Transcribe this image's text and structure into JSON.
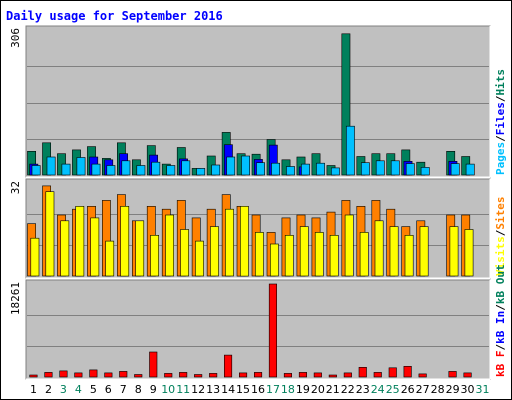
{
  "chart_data": {
    "type": "bar",
    "title": "Daily usage for September 2016",
    "days": [
      "1",
      "2",
      "3",
      "4",
      "5",
      "6",
      "7",
      "8",
      "9",
      "10",
      "11",
      "12",
      "13",
      "14",
      "15",
      "16",
      "17",
      "18",
      "19",
      "20",
      "21",
      "22",
      "23",
      "24",
      "25",
      "26",
      "27",
      "28",
      "29",
      "30",
      "31"
    ],
    "weekend_days": [
      "3",
      "4",
      "10",
      "11",
      "17",
      "18",
      "24",
      "25",
      "31"
    ],
    "panels": [
      {
        "id": "hits-files-pages",
        "max_label": "306",
        "ymax": 306,
        "right_labels": [
          {
            "text": "Pages",
            "color": "#00c0ff"
          },
          {
            "text": "/",
            "color": "#000000"
          },
          {
            "text": "Files",
            "color": "#0000ff"
          },
          {
            "text": "/",
            "color": "#000000"
          },
          {
            "text": "Hits",
            "color": "#00805c"
          }
        ],
        "series": [
          {
            "name": "Hits",
            "color": "#00805c",
            "values": [
              50,
              68,
              45,
              53,
              60,
              35,
              68,
              32,
              62,
              23,
              58,
              14,
              40,
              90,
              45,
              44,
              75,
              32,
              38,
              45,
              20,
              298,
              39,
              45,
              45,
              53,
              27,
              0,
              50,
              39,
              null
            ]
          },
          {
            "name": "Files",
            "color": "#0000ff",
            "values": [
              23,
              0,
              0,
              0,
              38,
              32,
              45,
              0,
              42,
              0,
              34,
              0,
              0,
              64,
              0,
              33,
              63,
              0,
              17,
              0,
              0,
              0,
              0,
              0,
              0,
              29,
              0,
              0,
              29,
              0,
              null
            ]
          },
          {
            "name": "Pages",
            "color": "#00c0ff",
            "values": [
              20,
              38,
              23,
              37,
              23,
              20,
              30,
              20,
              27,
              20,
              30,
              14,
              21,
              38,
              40,
              26,
              25,
              18,
              23,
              25,
              15,
              103,
              26,
              30,
              30,
              24,
              16,
              0,
              24,
              23,
              null
            ]
          }
        ]
      },
      {
        "id": "visits-sites",
        "max_label": "32",
        "ymax": 32,
        "right_labels": [
          {
            "text": "Visits",
            "color": "#ffff00"
          },
          {
            "text": "/",
            "color": "#000000"
          },
          {
            "text": "Sites",
            "color": "#ff8000"
          }
        ],
        "series": [
          {
            "name": "Sites",
            "color": "#ff8000",
            "values": [
              18,
              31,
              21,
              23,
              24,
              26,
              28,
              19,
              24,
              23,
              26,
              20,
              23,
              28,
              24,
              21,
              15,
              20,
              21,
              20,
              22,
              26,
              24,
              26,
              23,
              17,
              19,
              0,
              21,
              21,
              null
            ]
          },
          {
            "name": "Visits",
            "color": "#ffff00",
            "values": [
              13,
              29,
              19,
              24,
              20,
              12,
              24,
              19,
              14,
              21,
              16,
              12,
              17,
              23,
              24,
              15,
              11,
              14,
              17,
              15,
              14,
              21,
              15,
              19,
              17,
              14,
              17,
              0,
              17,
              16,
              null
            ]
          }
        ]
      },
      {
        "id": "kbytes",
        "max_label": "18261",
        "ymax": 18261,
        "right_labels": [
          {
            "text": "kB F",
            "color": "#ff0000"
          },
          {
            "text": "/",
            "color": "#000000"
          },
          {
            "text": "kB In",
            "color": "#0000ff"
          },
          {
            "text": "/",
            "color": "#000000"
          },
          {
            "text": "kB Out",
            "color": "#00805c"
          }
        ],
        "series": [
          {
            "name": "kB F",
            "color": "#ff0000",
            "values": [
              400,
              900,
              1200,
              800,
              1400,
              800,
              1100,
              500,
              4900,
              700,
              900,
              500,
              700,
              4300,
              800,
              900,
              18261,
              700,
              900,
              800,
              400,
              800,
              1900,
              900,
              1800,
              2100,
              600,
              0,
              1100,
              800,
              null
            ]
          }
        ]
      }
    ]
  }
}
